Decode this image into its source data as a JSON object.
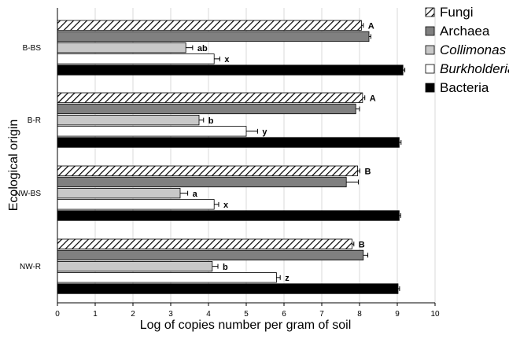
{
  "chart_data": {
    "type": "bar",
    "orientation": "horizontal",
    "xlabel": "Log of copies number per gram of soil",
    "ylabel": "Ecological origin",
    "xlim": [
      0,
      10
    ],
    "xticks": [
      "0",
      "1",
      "2",
      "3",
      "4",
      "5",
      "6",
      "7",
      "8",
      "9",
      "10"
    ],
    "grid": "vertical",
    "legend_position": "top-right",
    "categories": [
      "B-BS",
      "B-R",
      "NW-BS",
      "NW-R"
    ],
    "series": [
      {
        "name": "Fungi",
        "italic": false,
        "pattern": "diagonal-hatch",
        "color": "#ffffff",
        "values": [
          8.05,
          8.08,
          7.95,
          7.8
        ],
        "errors": [
          0.05,
          0.06,
          0.06,
          0.05
        ],
        "labels": [
          "A",
          "A",
          "B",
          "B"
        ]
      },
      {
        "name": "Archaea",
        "italic": false,
        "pattern": "solid",
        "color": "#808080",
        "values": [
          8.25,
          7.9,
          7.65,
          8.1
        ],
        "errors": [
          0.05,
          0.1,
          0.32,
          0.12
        ],
        "labels": [
          "",
          "",
          "",
          ""
        ]
      },
      {
        "name": "Collimonas",
        "italic": true,
        "pattern": "solid",
        "color": "#c8c8c8",
        "values": [
          3.4,
          3.75,
          3.25,
          4.1
        ],
        "errors": [
          0.18,
          0.12,
          0.2,
          0.15
        ],
        "labels": [
          "ab",
          "b",
          "a",
          "b"
        ]
      },
      {
        "name": "Burkholderia",
        "italic": true,
        "pattern": "solid",
        "color": "#ffffff",
        "values": [
          4.15,
          5.0,
          4.15,
          5.8
        ],
        "errors": [
          0.15,
          0.3,
          0.12,
          0.1
        ],
        "labels": [
          "x",
          "y",
          "x",
          "z"
        ]
      },
      {
        "name": "Bacteria",
        "italic": false,
        "pattern": "solid",
        "color": "#000000",
        "values": [
          9.15,
          9.05,
          9.05,
          9.02
        ],
        "errors": [
          0.05,
          0.05,
          0.04,
          0.04
        ],
        "labels": [
          "",
          "",
          "",
          ""
        ]
      }
    ]
  }
}
